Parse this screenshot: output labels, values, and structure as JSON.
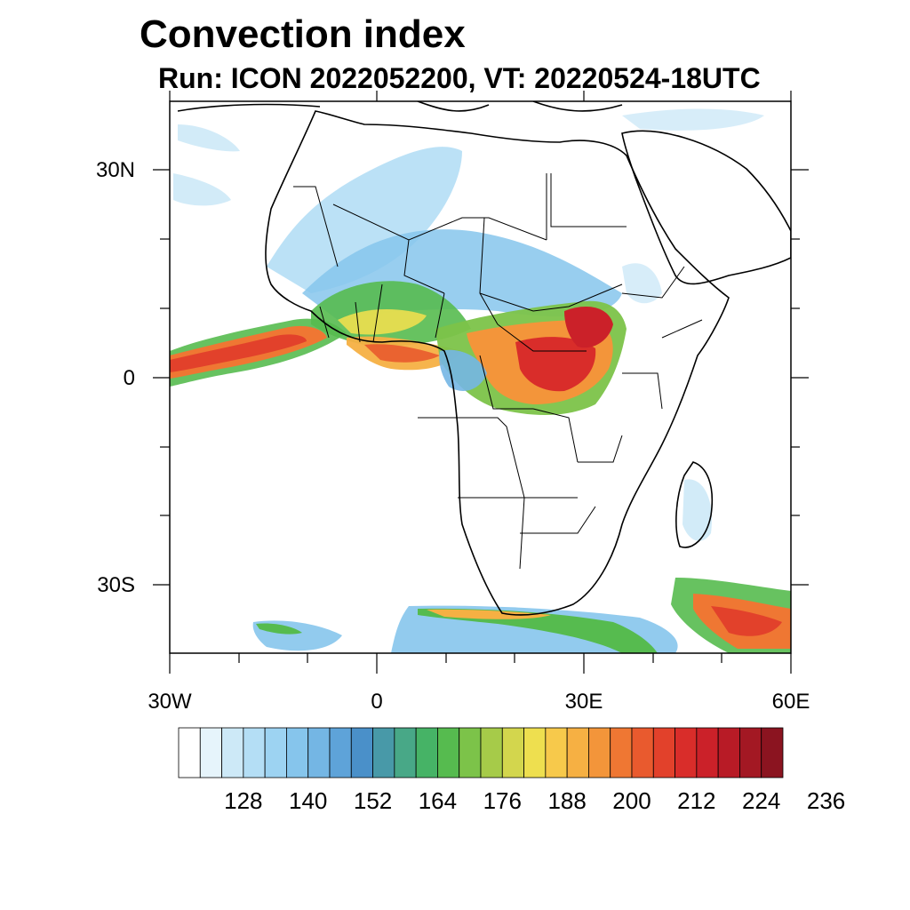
{
  "title": "Convection index",
  "subtitle": "Run: ICON 2022052200,  VT: 20220524-18UTC",
  "axes": {
    "lat_labels": [
      "30N",
      "0",
      "30S"
    ],
    "lon_labels": [
      "30W",
      "0",
      "30E",
      "60E"
    ],
    "lon_range": [
      -30,
      60
    ],
    "lat_range": [
      -40,
      40
    ]
  },
  "colorbar": {
    "labels": [
      "128",
      "140",
      "152",
      "164",
      "176",
      "188",
      "200",
      "212",
      "224",
      "236"
    ],
    "colors": [
      "#ffffff",
      "#e6f4fb",
      "#cde9f7",
      "#b4def5",
      "#9dd3f2",
      "#86c5ec",
      "#74b6e4",
      "#5ea3d9",
      "#4a90c9",
      "#4899a8",
      "#48a887",
      "#46b366",
      "#56bb4f",
      "#7cc349",
      "#a6cb49",
      "#d3d64d",
      "#eedf4f",
      "#f7c94b",
      "#f6b043",
      "#f3953a",
      "#ef7733",
      "#e95a2e",
      "#e2412b",
      "#d92d2a",
      "#cb2129",
      "#b81b26",
      "#a31823",
      "#8b1420"
    ]
  },
  "chart_data": {
    "type": "heatmap",
    "title": "Convection index",
    "subtitle": "Run: ICON 2022052200,  VT: 20220524-18UTC",
    "x_axis": {
      "ticks": [
        "30W",
        "0",
        "30E",
        "60E"
      ],
      "range": [
        -30,
        60
      ]
    },
    "y_axis": {
      "ticks": [
        "30N",
        "0",
        "30S"
      ],
      "range": [
        -40,
        40
      ]
    },
    "colorbar_ticks": [
      128,
      140,
      152,
      164,
      176,
      188,
      200,
      212,
      224,
      236
    ],
    "regions_high": [
      "Tropical Atlantic near 0",
      "Central Africa",
      "Southern Indian Ocean"
    ]
  }
}
